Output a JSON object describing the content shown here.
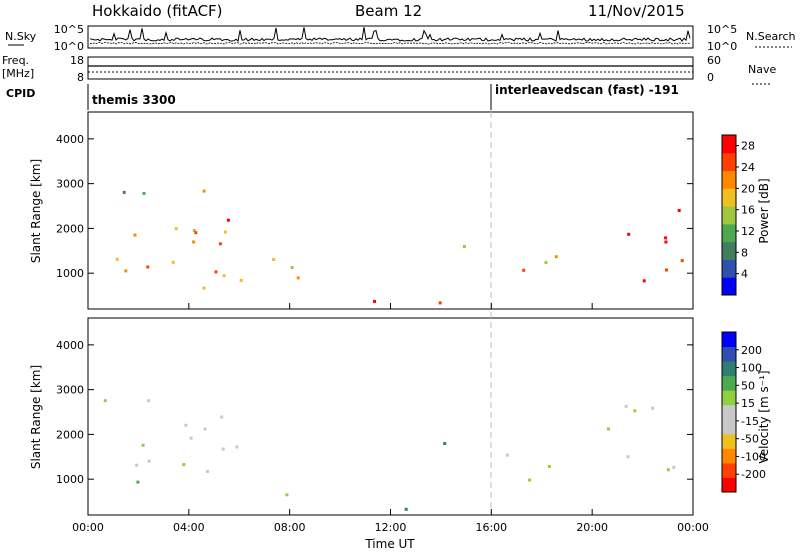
{
  "header": {
    "station": "Hokkaido (fitACF)",
    "beam": "Beam 12",
    "date": "11/Nov/2015"
  },
  "top_panels": {
    "nsky_label": "N.Sky",
    "nsky_ticks": [
      "10^5",
      "10^0"
    ],
    "nsearch_label": "N.Search",
    "nsearch_ticks": [
      "10^5",
      "10^0"
    ],
    "freq_label_1": "Freq.",
    "freq_label_2": "[MHz]",
    "freq_ticks": [
      "18",
      "8"
    ],
    "nave_label": "Nave",
    "nave_ticks": [
      "60",
      "0"
    ],
    "cpid_label": "CPID",
    "cpid_segments": [
      {
        "name": "themis 3300",
        "start_hour": 0
      },
      {
        "name": "interleavedscan (fast) -191",
        "start_hour": 16
      }
    ]
  },
  "time_axis": {
    "label": "Time UT",
    "ticks": [
      "00:00",
      "04:00",
      "08:00",
      "12:00",
      "16:00",
      "20:00",
      "00:00"
    ],
    "range_hours": [
      0,
      24
    ]
  },
  "chart_data": [
    {
      "type": "heatmap",
      "name": "power",
      "ylabel": "Slant Range [km]",
      "yticks": [
        "1000",
        "2000",
        "3000",
        "4000"
      ],
      "ylim": [
        200,
        4600
      ],
      "colorbar_label": "Power [dB]",
      "colorbar_ticks": [
        "4",
        "8",
        "12",
        "16",
        "20",
        "24",
        "28"
      ],
      "colorbar_range": [
        0,
        30
      ],
      "colors": [
        "#0000ff",
        "#2f4fb0",
        "#3f7f5f",
        "#4fa84f",
        "#9fc83f",
        "#f0c020",
        "#ff8800",
        "#ff4000",
        "#ff0000"
      ],
      "echo_regions": [
        {
          "t": [
            0.3,
            7.5
          ],
          "r": [
            500,
            2200
          ],
          "value": 20
        },
        {
          "t": [
            3.5,
            6.0
          ],
          "r": [
            1500,
            2900
          ],
          "value": 26
        },
        {
          "t": [
            6.5,
            8.0
          ],
          "r": [
            1200,
            1900
          ],
          "value": 20
        },
        {
          "t": [
            0.5,
            3.5
          ],
          "r": [
            2500,
            3100
          ],
          "value": 10
        },
        {
          "t": [
            7.0,
            9.0
          ],
          "r": [
            300,
            1200
          ],
          "value": 18
        },
        {
          "t": [
            13.5,
            15.5
          ],
          "r": [
            1500,
            1800
          ],
          "value": 10
        },
        {
          "t": [
            15.5,
            19.0
          ],
          "r": [
            900,
            1700
          ],
          "value": 24
        },
        {
          "t": [
            17.5,
            20.0
          ],
          "r": [
            1000,
            1500
          ],
          "value": 16
        },
        {
          "t": [
            20.5,
            24.0
          ],
          "r": [
            800,
            2800
          ],
          "value": 26
        },
        {
          "t": [
            10.0,
            21.0
          ],
          "r": [
            250,
            450
          ],
          "value": 28
        }
      ]
    },
    {
      "type": "heatmap",
      "name": "velocity",
      "ylabel": "Slant Range [km]",
      "yticks": [
        "1000",
        "2000",
        "3000",
        "4000"
      ],
      "ylim": [
        200,
        4600
      ],
      "colorbar_label": "Velocity [m s⁻¹]",
      "colorbar_ticks": [
        "200",
        "100",
        "50",
        "15",
        "-15",
        "-50",
        "-100",
        "-200"
      ],
      "colorbar_range": [
        -250,
        250
      ],
      "colors": [
        "#ff0000",
        "#ff4000",
        "#ff8800",
        "#f0c020",
        "#c8c8c8",
        "#c8c8c8",
        "#90d040",
        "#4fa84f",
        "#2f7f6f",
        "#2f4fb0",
        "#0000ff"
      ],
      "echo_regions": [
        {
          "t": [
            0.3,
            7.5
          ],
          "r": [
            500,
            2200
          ],
          "value": 0
        },
        {
          "t": [
            3.5,
            6.0
          ],
          "r": [
            1500,
            2900
          ],
          "value": -30
        },
        {
          "t": [
            0.5,
            3.5
          ],
          "r": [
            2500,
            3100
          ],
          "value": 0
        },
        {
          "t": [
            7.0,
            9.0
          ],
          "r": [
            300,
            1200
          ],
          "value": 0
        },
        {
          "t": [
            13.5,
            15.5
          ],
          "r": [
            1500,
            1800
          ],
          "value": 60
        },
        {
          "t": [
            15.5,
            19.0
          ],
          "r": [
            900,
            1700
          ],
          "value": 0
        },
        {
          "t": [
            20.5,
            24.0
          ],
          "r": [
            800,
            2800
          ],
          "value": 0
        },
        {
          "t": [
            12.0,
            21.0
          ],
          "r": [
            250,
            450
          ],
          "value": 60
        }
      ]
    }
  ]
}
